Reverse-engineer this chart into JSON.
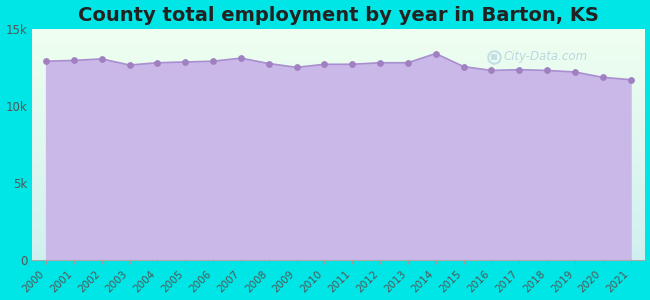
{
  "title": "County total employment by year in Barton, KS",
  "title_fontsize": 14,
  "title_fontweight": "bold",
  "background_color": "#00e5e5",
  "fill_color": "#c9b8e8",
  "line_color": "#a98fd0",
  "marker_color": "#a080c0",
  "years": [
    2000,
    2001,
    2002,
    2003,
    2004,
    2005,
    2006,
    2007,
    2008,
    2009,
    2010,
    2011,
    2012,
    2013,
    2014,
    2015,
    2016,
    2017,
    2018,
    2019,
    2020,
    2021
  ],
  "values": [
    12900,
    12950,
    13050,
    12650,
    12800,
    12850,
    12900,
    13100,
    12750,
    12500,
    12700,
    12700,
    12800,
    12800,
    13400,
    12550,
    12300,
    12350,
    12300,
    12200,
    11850,
    11700
  ],
  "ylim": [
    0,
    15000
  ],
  "yticks": [
    0,
    5000,
    10000,
    15000
  ],
  "ytick_labels": [
    "0",
    "5k",
    "10k",
    "15k"
  ],
  "watermark": "City-Data.com"
}
